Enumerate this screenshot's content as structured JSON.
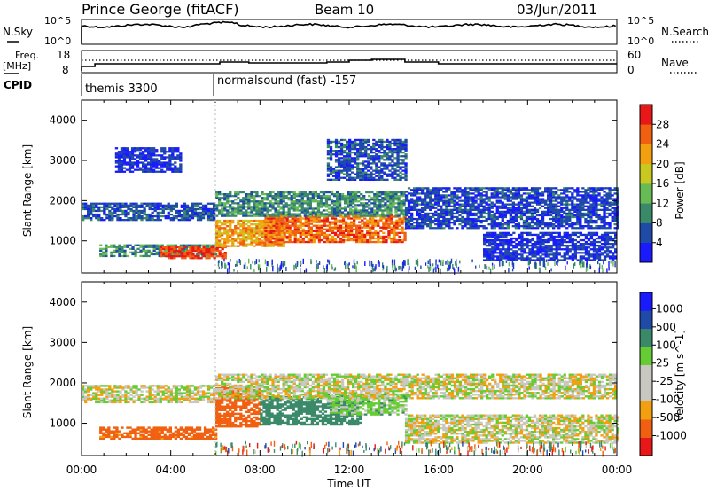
{
  "header": {
    "station": "Prince George (fitACF)",
    "beam": "Beam 10",
    "date": "03/Jun/2011"
  },
  "summary_panels": {
    "nsky": {
      "label": "N.Sky",
      "tick_top": "10^5",
      "tick_bottom": "10^0"
    },
    "nsearch": {
      "label": "N.Search",
      "tick_top": "10^5",
      "tick_bottom": "10^0"
    },
    "freq": {
      "label_line1": "Freq.",
      "label_line2": "[MHz]",
      "tick_top": "18",
      "tick_bottom": "8"
    },
    "nave": {
      "label": "Nave",
      "tick_top": "60",
      "tick_bottom": "0"
    },
    "cpid": {
      "label": "CPID",
      "programs": [
        {
          "name": "themis 3300",
          "start_hour": 0
        },
        {
          "name": "normalsound (fast) -157",
          "start_hour": 6
        }
      ]
    }
  },
  "colors": {
    "power": [
      "#1a1aff",
      "#1f4aa8",
      "#3a8a6a",
      "#66bb55",
      "#c8c820",
      "#f2a010",
      "#f06010",
      "#e81818"
    ],
    "velocity": [
      "#e81818",
      "#f06010",
      "#f2a010",
      "#c8c8c0",
      "#c8c8c0",
      "#66cc33",
      "#3a8a6a",
      "#1f4aa8",
      "#1a1aff"
    ]
  },
  "chart_data": [
    {
      "type": "heatmap",
      "title": "Power",
      "ylabel": "Slant Range [km]",
      "xlabel": "Time UT",
      "xlim": [
        0,
        24
      ],
      "ylim": [
        200,
        4500
      ],
      "yticks": [
        "1000",
        "2000",
        "3000",
        "4000"
      ],
      "xticks": [
        "00:00",
        "04:00",
        "08:00",
        "12:00",
        "16:00",
        "20:00",
        "00:00"
      ],
      "colorbar_label": "Power [dB]",
      "colorbar_ticks": [
        "4",
        "8",
        "12",
        "16",
        "20",
        "24",
        "28"
      ],
      "colorbar_range": [
        0,
        32
      ],
      "features": [
        {
          "t0": 0,
          "t1": 6,
          "r0": 1500,
          "r1": 1950,
          "value": 6
        },
        {
          "t0": 0.8,
          "t1": 6,
          "r0": 600,
          "r1": 900,
          "value": 10
        },
        {
          "t0": 3.5,
          "t1": 6.5,
          "r0": 550,
          "r1": 850,
          "value": 28
        },
        {
          "t0": 6,
          "t1": 9,
          "r0": 850,
          "r1": 1500,
          "value": 22
        },
        {
          "t0": 8.2,
          "t1": 14.5,
          "r0": 950,
          "r1": 1650,
          "value": 26
        },
        {
          "t0": 6,
          "t1": 14.5,
          "r0": 1600,
          "r1": 2200,
          "value": 10
        },
        {
          "t0": 11,
          "t1": 14.5,
          "r0": 2500,
          "r1": 3500,
          "value": 6
        },
        {
          "t0": 14.5,
          "t1": 24,
          "r0": 1300,
          "r1": 2300,
          "value": 5
        },
        {
          "t0": 18,
          "t1": 24,
          "r0": 500,
          "r1": 1200,
          "value": 4
        },
        {
          "t0": 1.5,
          "t1": 4.5,
          "r0": 2700,
          "r1": 3300,
          "value": 4
        }
      ]
    },
    {
      "type": "heatmap",
      "title": "Velocity",
      "ylabel": "Slant Range [km]",
      "xlabel": "Time UT",
      "xlim": [
        0,
        24
      ],
      "ylim": [
        200,
        4500
      ],
      "yticks": [
        "1000",
        "2000",
        "3000",
        "4000"
      ],
      "xticks": [
        "00:00",
        "04:00",
        "08:00",
        "12:00",
        "16:00",
        "20:00",
        "00:00"
      ],
      "colorbar_label": "Velocity [m s^-1]",
      "colorbar_ticks": [
        "1000",
        "500",
        "100",
        "25",
        "-25",
        "-100",
        "-500",
        "-1000"
      ],
      "features": [
        {
          "t0": 0,
          "t1": 6,
          "r0": 1500,
          "r1": 1950,
          "value": 0
        },
        {
          "t0": 0.8,
          "t1": 6,
          "r0": 600,
          "r1": 900,
          "value": -150
        },
        {
          "t0": 6,
          "t1": 8,
          "r0": 900,
          "r1": 1900,
          "value": -300
        },
        {
          "t0": 8,
          "t1": 12.5,
          "r0": 950,
          "r1": 1650,
          "value": 200
        },
        {
          "t0": 11,
          "t1": 14.5,
          "r0": 1200,
          "r1": 1700,
          "value": 60
        },
        {
          "t0": 6,
          "t1": 24,
          "r0": 1600,
          "r1": 2200,
          "value": 0
        },
        {
          "t0": 14.5,
          "t1": 24,
          "r0": 500,
          "r1": 1200,
          "value": 0
        }
      ]
    }
  ]
}
